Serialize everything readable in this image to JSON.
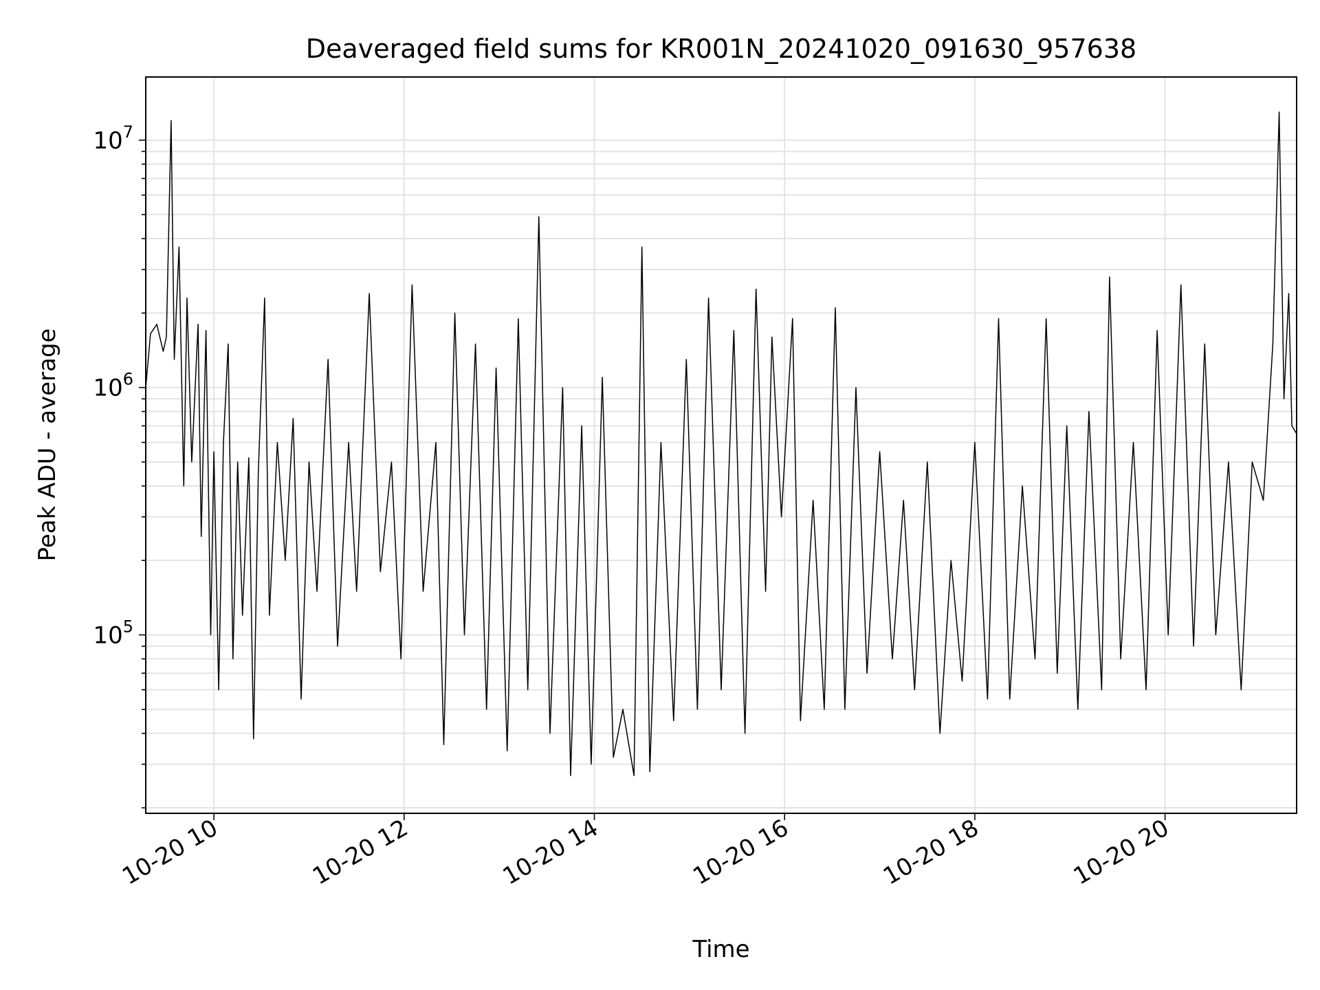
{
  "chart_data": {
    "type": "line",
    "title": "Deaveraged field sums for KR001N_20241020_091630_957638",
    "xlabel": "Time",
    "ylabel": "Peak ADU - average",
    "yscale": "log",
    "grid": "on (major and minor, light gray)",
    "legend": "none",
    "xlim": [
      "2024-10-20 09:17",
      "2024-10-20 21:23"
    ],
    "ylim": [
      19000,
      18000000
    ],
    "x_tick_labels": [
      {
        "t": "2024-10-20 10:00",
        "label": "10-20 10"
      },
      {
        "t": "2024-10-20 12:00",
        "label": "10-20 12"
      },
      {
        "t": "2024-10-20 14:00",
        "label": "10-20 14"
      },
      {
        "t": "2024-10-20 16:00",
        "label": "10-20 16"
      },
      {
        "t": "2024-10-20 18:00",
        "label": "10-20 18"
      },
      {
        "t": "2024-10-20 20:00",
        "label": "10-20 20"
      }
    ],
    "y_tick_labels": [
      {
        "value": 100000,
        "base": "10",
        "exp": "5"
      },
      {
        "value": 1000000,
        "base": "10",
        "exp": "6"
      },
      {
        "value": 10000000,
        "base": "10",
        "exp": "7"
      }
    ],
    "series": [
      {
        "color": "#000000",
        "points": [
          [
            "2024-10-20 09:17",
            1000000
          ],
          [
            "2024-10-20 09:20",
            1650000
          ],
          [
            "2024-10-20 09:24",
            1800000
          ],
          [
            "2024-10-20 09:28",
            1400000
          ],
          [
            "2024-10-20 09:30",
            1600000
          ],
          [
            "2024-10-20 09:33",
            12000000
          ],
          [
            "2024-10-20 09:35",
            1300000
          ],
          [
            "2024-10-20 09:38",
            3700000
          ],
          [
            "2024-10-20 09:41",
            400000
          ],
          [
            "2024-10-20 09:43",
            2300000
          ],
          [
            "2024-10-20 09:46",
            500000
          ],
          [
            "2024-10-20 09:50",
            1800000
          ],
          [
            "2024-10-20 09:52",
            250000
          ],
          [
            "2024-10-20 09:55",
            1700000
          ],
          [
            "2024-10-20 09:58",
            100000
          ],
          [
            "2024-10-20 10:00",
            550000
          ],
          [
            "2024-10-20 10:03",
            60000
          ],
          [
            "2024-10-20 10:06",
            600000
          ],
          [
            "2024-10-20 10:09",
            1500000
          ],
          [
            "2024-10-20 10:12",
            80000
          ],
          [
            "2024-10-20 10:15",
            500000
          ],
          [
            "2024-10-20 10:18",
            120000
          ],
          [
            "2024-10-20 10:22",
            520000
          ],
          [
            "2024-10-20 10:25",
            38000
          ],
          [
            "2024-10-20 10:28",
            450000
          ],
          [
            "2024-10-20 10:32",
            2300000
          ],
          [
            "2024-10-20 10:35",
            120000
          ],
          [
            "2024-10-20 10:40",
            600000
          ],
          [
            "2024-10-20 10:45",
            200000
          ],
          [
            "2024-10-20 10:50",
            750000
          ],
          [
            "2024-10-20 10:55",
            55000
          ],
          [
            "2024-10-20 11:00",
            500000
          ],
          [
            "2024-10-20 11:05",
            150000
          ],
          [
            "2024-10-20 11:12",
            1300000
          ],
          [
            "2024-10-20 11:18",
            90000
          ],
          [
            "2024-10-20 11:25",
            600000
          ],
          [
            "2024-10-20 11:30",
            150000
          ],
          [
            "2024-10-20 11:38",
            2400000
          ],
          [
            "2024-10-20 11:45",
            180000
          ],
          [
            "2024-10-20 11:52",
            500000
          ],
          [
            "2024-10-20 11:58",
            80000
          ],
          [
            "2024-10-20 12:05",
            2600000
          ],
          [
            "2024-10-20 12:12",
            150000
          ],
          [
            "2024-10-20 12:20",
            600000
          ],
          [
            "2024-10-20 12:25",
            36000
          ],
          [
            "2024-10-20 12:32",
            2000000
          ],
          [
            "2024-10-20 12:38",
            100000
          ],
          [
            "2024-10-20 12:45",
            1500000
          ],
          [
            "2024-10-20 12:52",
            50000
          ],
          [
            "2024-10-20 12:58",
            1200000
          ],
          [
            "2024-10-20 13:05",
            34000
          ],
          [
            "2024-10-20 13:12",
            1900000
          ],
          [
            "2024-10-20 13:18",
            60000
          ],
          [
            "2024-10-20 13:25",
            4900000
          ],
          [
            "2024-10-20 13:32",
            40000
          ],
          [
            "2024-10-20 13:40",
            1000000
          ],
          [
            "2024-10-20 13:45",
            27000
          ],
          [
            "2024-10-20 13:52",
            700000
          ],
          [
            "2024-10-20 13:58",
            30000
          ],
          [
            "2024-10-20 14:05",
            1100000
          ],
          [
            "2024-10-20 14:12",
            32000
          ],
          [
            "2024-10-20 14:18",
            50000
          ],
          [
            "2024-10-20 14:25",
            27000
          ],
          [
            "2024-10-20 14:30",
            3700000
          ],
          [
            "2024-10-20 14:35",
            28000
          ],
          [
            "2024-10-20 14:42",
            600000
          ],
          [
            "2024-10-20 14:50",
            45000
          ],
          [
            "2024-10-20 14:58",
            1300000
          ],
          [
            "2024-10-20 15:05",
            50000
          ],
          [
            "2024-10-20 15:12",
            2300000
          ],
          [
            "2024-10-20 15:20",
            60000
          ],
          [
            "2024-10-20 15:28",
            1700000
          ],
          [
            "2024-10-20 15:35",
            40000
          ],
          [
            "2024-10-20 15:42",
            2500000
          ],
          [
            "2024-10-20 15:48",
            150000
          ],
          [
            "2024-10-20 15:52",
            1600000
          ],
          [
            "2024-10-20 15:58",
            300000
          ],
          [
            "2024-10-20 16:05",
            1900000
          ],
          [
            "2024-10-20 16:10",
            45000
          ],
          [
            "2024-10-20 16:18",
            350000
          ],
          [
            "2024-10-20 16:25",
            50000
          ],
          [
            "2024-10-20 16:32",
            2100000
          ],
          [
            "2024-10-20 16:38",
            50000
          ],
          [
            "2024-10-20 16:45",
            1000000
          ],
          [
            "2024-10-20 16:52",
            70000
          ],
          [
            "2024-10-20 17:00",
            550000
          ],
          [
            "2024-10-20 17:08",
            80000
          ],
          [
            "2024-10-20 17:15",
            350000
          ],
          [
            "2024-10-20 17:22",
            60000
          ],
          [
            "2024-10-20 17:30",
            500000
          ],
          [
            "2024-10-20 17:38",
            40000
          ],
          [
            "2024-10-20 17:45",
            200000
          ],
          [
            "2024-10-20 17:52",
            65000
          ],
          [
            "2024-10-20 18:00",
            600000
          ],
          [
            "2024-10-20 18:08",
            55000
          ],
          [
            "2024-10-20 18:15",
            1900000
          ],
          [
            "2024-10-20 18:22",
            55000
          ],
          [
            "2024-10-20 18:30",
            400000
          ],
          [
            "2024-10-20 18:38",
            80000
          ],
          [
            "2024-10-20 18:45",
            1900000
          ],
          [
            "2024-10-20 18:52",
            70000
          ],
          [
            "2024-10-20 18:58",
            700000
          ],
          [
            "2024-10-20 19:05",
            50000
          ],
          [
            "2024-10-20 19:12",
            800000
          ],
          [
            "2024-10-20 19:20",
            60000
          ],
          [
            "2024-10-20 19:25",
            2800000
          ],
          [
            "2024-10-20 19:32",
            80000
          ],
          [
            "2024-10-20 19:40",
            600000
          ],
          [
            "2024-10-20 19:48",
            60000
          ],
          [
            "2024-10-20 19:55",
            1700000
          ],
          [
            "2024-10-20 20:02",
            100000
          ],
          [
            "2024-10-20 20:10",
            2600000
          ],
          [
            "2024-10-20 20:18",
            90000
          ],
          [
            "2024-10-20 20:25",
            1500000
          ],
          [
            "2024-10-20 20:32",
            100000
          ],
          [
            "2024-10-20 20:40",
            500000
          ],
          [
            "2024-10-20 20:48",
            60000
          ],
          [
            "2024-10-20 20:55",
            500000
          ],
          [
            "2024-10-20 21:02",
            350000
          ],
          [
            "2024-10-20 21:08",
            1500000
          ],
          [
            "2024-10-20 21:12",
            13000000
          ],
          [
            "2024-10-20 21:15",
            900000
          ],
          [
            "2024-10-20 21:18",
            2400000
          ],
          [
            "2024-10-20 21:20",
            700000
          ],
          [
            "2024-10-20 21:23",
            650000
          ]
        ]
      }
    ]
  }
}
